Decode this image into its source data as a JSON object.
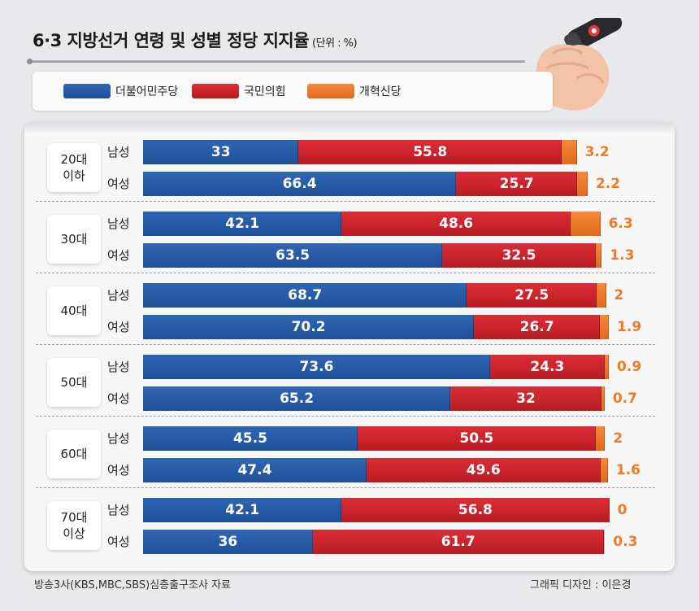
{
  "title": "6·3 지방선거 연령 및 성별 정당 지지율",
  "unit": "(단위 : %)",
  "legend": [
    {
      "name": "더불어민주당",
      "color": "#2558a6"
    },
    {
      "name": "국민의힘",
      "color": "#c9232b"
    },
    {
      "name": "개혁신당",
      "color": "#ef7b24"
    }
  ],
  "chart_data": {
    "type": "bar",
    "stacked": true,
    "title": "6·3 지방선거 연령 및 성별 정당 지지율",
    "unit": "%",
    "groups": [
      {
        "age": "20대\n이하",
        "rows": [
          {
            "sex": "남성",
            "values": [
              33,
              55.8,
              3.2
            ],
            "labels": [
              "33",
              "55.8",
              "3.2"
            ]
          },
          {
            "sex": "여성",
            "values": [
              66.4,
              25.7,
              2.2
            ],
            "labels": [
              "66.4",
              "25.7",
              "2.2"
            ]
          }
        ]
      },
      {
        "age": "30대",
        "rows": [
          {
            "sex": "남성",
            "values": [
              42.1,
              48.6,
              6.3
            ],
            "labels": [
              "42.1",
              "48.6",
              "6.3"
            ]
          },
          {
            "sex": "여성",
            "values": [
              63.5,
              32.5,
              1.3
            ],
            "labels": [
              "63.5",
              "32.5",
              "1.3"
            ]
          }
        ]
      },
      {
        "age": "40대",
        "rows": [
          {
            "sex": "남성",
            "values": [
              68.7,
              27.5,
              2
            ],
            "labels": [
              "68.7",
              "27.5",
              "2"
            ]
          },
          {
            "sex": "여성",
            "values": [
              70.2,
              26.7,
              1.9
            ],
            "labels": [
              "70.2",
              "26.7",
              "1.9"
            ]
          }
        ]
      },
      {
        "age": "50대",
        "rows": [
          {
            "sex": "남성",
            "values": [
              73.6,
              24.3,
              0.9
            ],
            "labels": [
              "73.6",
              "24.3",
              "0.9"
            ]
          },
          {
            "sex": "여성",
            "values": [
              65.2,
              32,
              0.7
            ],
            "labels": [
              "65.2",
              "32",
              "0.7"
            ]
          }
        ]
      },
      {
        "age": "60대",
        "rows": [
          {
            "sex": "남성",
            "values": [
              45.5,
              50.5,
              2
            ],
            "labels": [
              "45.5",
              "50.5",
              "2"
            ]
          },
          {
            "sex": "여성",
            "values": [
              47.4,
              49.6,
              1.6
            ],
            "labels": [
              "47.4",
              "49.6",
              "1.6"
            ]
          }
        ]
      },
      {
        "age": "70대\n이상",
        "rows": [
          {
            "sex": "남성",
            "values": [
              42.1,
              56.8,
              0
            ],
            "labels": [
              "42.1",
              "56.8",
              "0"
            ]
          },
          {
            "sex": "여성",
            "values": [
              36,
              61.7,
              0.3
            ],
            "labels": [
              "36",
              "61.7",
              "0.3"
            ]
          }
        ]
      }
    ]
  },
  "footer": {
    "source": "방송3사(KBS,MBC,SBS)심층출구조사 자료",
    "credit": "그래픽 디자인 : 이은경"
  }
}
